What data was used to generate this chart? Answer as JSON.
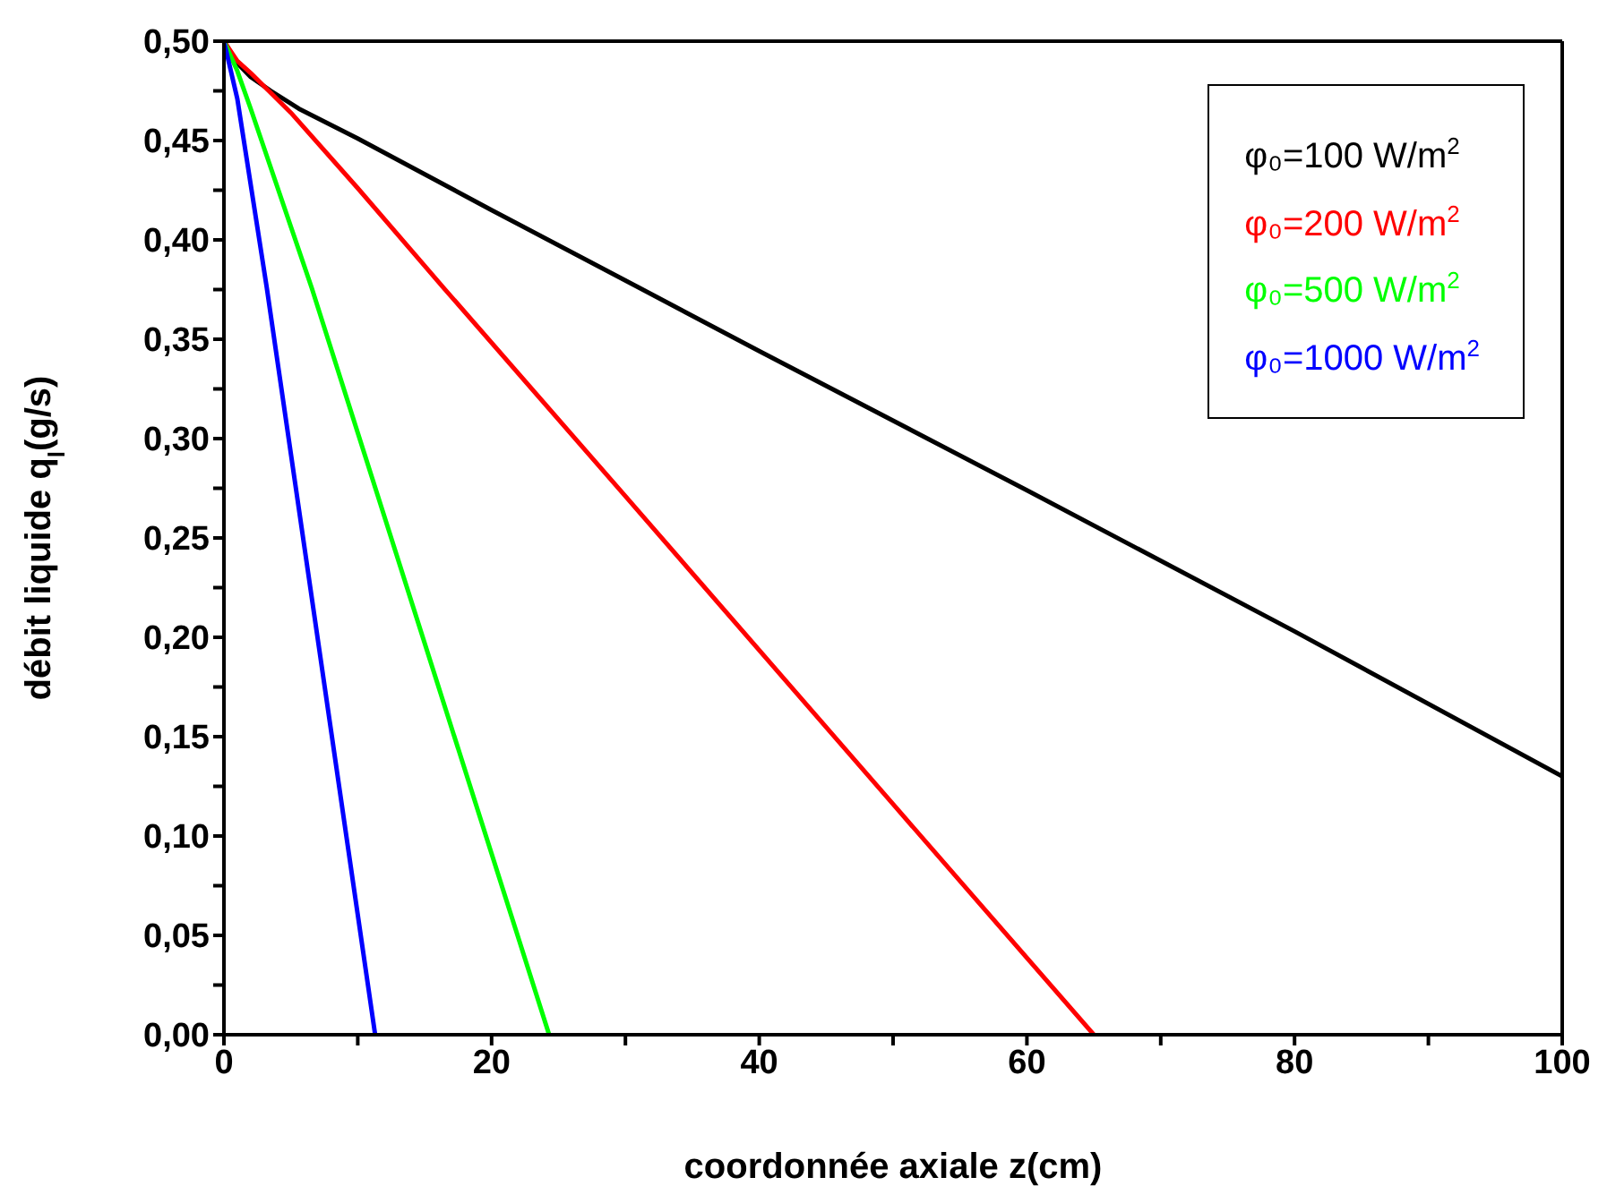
{
  "chart_data": {
    "type": "line",
    "xlabel": "coordonnée axiale z(cm)",
    "ylabel": "débit liquide q$_{l}$(g/s)",
    "xlim": [
      0,
      100
    ],
    "xticks": [
      0,
      {
        "value": 10,
        "label": null
      },
      20,
      {
        "value": 30,
        "label": null
      },
      40,
      {
        "value": 50,
        "label": null
      },
      60,
      {
        "value": 70,
        "label": null
      },
      80,
      {
        "value": 90,
        "label": null
      },
      100
    ],
    "ylim": [
      0,
      0.5
    ],
    "yticks": [
      {
        "value": 0,
        "label": "0,00"
      },
      {
        "value": 0.025,
        "label": null
      },
      {
        "value": 0.05,
        "label": "0,05"
      },
      {
        "value": 0.075,
        "label": null
      },
      {
        "value": 0.1,
        "label": "0,10"
      },
      {
        "value": 0.125,
        "label": null
      },
      {
        "value": 0.15,
        "label": "0,15"
      },
      {
        "value": 0.175,
        "label": null
      },
      {
        "value": 0.2,
        "label": "0,20"
      },
      {
        "value": 0.225,
        "label": null
      },
      {
        "value": 0.25,
        "label": "0,25"
      },
      {
        "value": 0.275,
        "label": null
      },
      {
        "value": 0.3,
        "label": "0,30"
      },
      {
        "value": 0.325,
        "label": null
      },
      {
        "value": 0.35,
        "label": "0,35"
      },
      {
        "value": 0.375,
        "label": null
      },
      {
        "value": 0.4,
        "label": "0,40"
      },
      {
        "value": 0.425,
        "label": null
      },
      {
        "value": 0.45,
        "label": "0,45"
      },
      {
        "value": 0.475,
        "label": null
      },
      {
        "value": 0.5,
        "label": "0,50"
      }
    ],
    "grid": false,
    "legend": "top right",
    "marker": "none",
    "line_style": "solid",
    "series": [
      {
        "name": "φ₀=100 W/m$^{2}$",
        "color": "#000000",
        "x": [
          0,
          1,
          2,
          3.5,
          5.6,
          10,
          20,
          31,
          40,
          60,
          80,
          100
        ],
        "values": [
          0.5,
          0.489,
          0.482,
          0.475,
          0.466,
          0.451,
          0.415,
          0.376,
          0.344,
          0.274,
          0.203,
          0.13
        ]
      },
      {
        "name": "φ₀=200 W/m$^{2}$",
        "color": "#ff0000",
        "x": [
          0,
          1,
          2,
          5,
          10,
          16.4,
          30,
          50,
          65
        ],
        "values": [
          0.5,
          0.49,
          0.484,
          0.464,
          0.426,
          0.376,
          0.271,
          0.116,
          0
        ]
      },
      {
        "name": "φ₀=500 W/m$^{2}$",
        "color": "#00ff00",
        "x": [
          0,
          1,
          2,
          6.55,
          24.3
        ],
        "values": [
          0.5,
          0.485,
          0.466,
          0.376,
          0
        ]
      },
      {
        "name": "φ₀=1000 W/m$^{2}$",
        "color": "#0000ff",
        "x": [
          0,
          1,
          3.2,
          11.3
        ],
        "values": [
          0.5,
          0.471,
          0.376,
          0
        ]
      }
    ]
  }
}
